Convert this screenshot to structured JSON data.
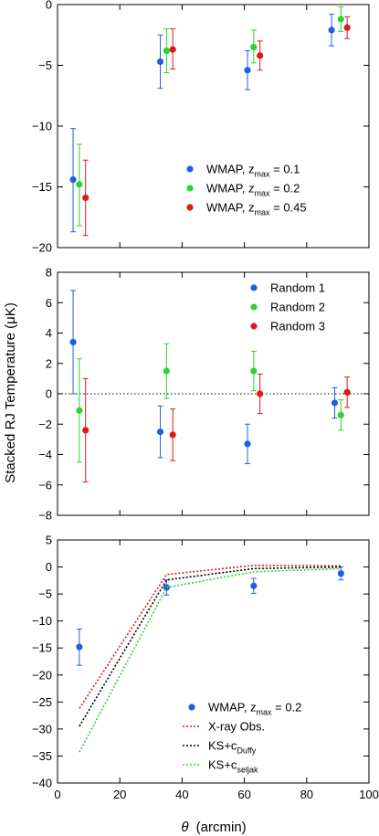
{
  "shared": {
    "ylabel": "Stacked RJ Temperature (μK)",
    "xlabel_symbol": "θ",
    "xlabel_unit": "(arcmin)",
    "xlim": [
      0,
      100
    ],
    "xticks": [
      0,
      20,
      40,
      60,
      80,
      100
    ]
  },
  "colors": {
    "blue": "#1f5fe0",
    "green": "#2fd22f",
    "red": "#e01818",
    "black": "#000000"
  },
  "chart_data": [
    {
      "type": "scatter",
      "ylim": [
        -20,
        0
      ],
      "yticks": [
        -20,
        -15,
        -10,
        -5,
        0
      ],
      "legend_placement": "bottom-right",
      "series": [
        {
          "name": "WMAP, z",
          "sub": "max",
          "suffix": " = 0.1",
          "color": "#1f5fe0",
          "points": [
            {
              "x": 5,
              "y": -14.4,
              "lo": -18.7,
              "hi": -10.2
            },
            {
              "x": 33,
              "y": -4.7,
              "lo": -6.9,
              "hi": -2.5
            },
            {
              "x": 61,
              "y": -5.4,
              "lo": -7.0,
              "hi": -3.8
            },
            {
              "x": 88,
              "y": -2.1,
              "lo": -3.4,
              "hi": -0.8
            }
          ]
        },
        {
          "name": "WMAP, z",
          "sub": "max",
          "suffix": " = 0.2",
          "color": "#2fd22f",
          "points": [
            {
              "x": 7,
              "y": -14.8,
              "lo": -18.2,
              "hi": -11.5
            },
            {
              "x": 35,
              "y": -3.8,
              "lo": -5.6,
              "hi": -2.0
            },
            {
              "x": 63,
              "y": -3.5,
              "lo": -4.8,
              "hi": -2.1
            },
            {
              "x": 91,
              "y": -1.2,
              "lo": -2.2,
              "hi": -0.2
            }
          ]
        },
        {
          "name": "WMAP, z",
          "sub": "max",
          "suffix": " = 0.45",
          "color": "#e01818",
          "points": [
            {
              "x": 9,
              "y": -15.9,
              "lo": -19.0,
              "hi": -12.8
            },
            {
              "x": 37,
              "y": -3.7,
              "lo": -5.3,
              "hi": -2.0
            },
            {
              "x": 65,
              "y": -4.2,
              "lo": -5.4,
              "hi": -3.0
            },
            {
              "x": 93,
              "y": -1.9,
              "lo": -2.8,
              "hi": -1.0
            }
          ]
        }
      ]
    },
    {
      "type": "scatter",
      "ylim": [
        -8,
        8
      ],
      "yticks": [
        -8,
        -6,
        -4,
        -2,
        0,
        2,
        4,
        6,
        8
      ],
      "zero_line": true,
      "legend_placement": "top-right",
      "series": [
        {
          "name": "Random 1",
          "color": "#1f5fe0",
          "points": [
            {
              "x": 5,
              "y": 3.4,
              "lo": 0.0,
              "hi": 6.8
            },
            {
              "x": 33,
              "y": -2.5,
              "lo": -4.2,
              "hi": -0.8
            },
            {
              "x": 61,
              "y": -3.3,
              "lo": -4.6,
              "hi": -2.0
            },
            {
              "x": 89,
              "y": -0.6,
              "lo": -1.6,
              "hi": 0.4
            }
          ]
        },
        {
          "name": "Random 2",
          "color": "#2fd22f",
          "points": [
            {
              "x": 7,
              "y": -1.1,
              "lo": -4.5,
              "hi": 2.3
            },
            {
              "x": 35,
              "y": 1.5,
              "lo": -0.3,
              "hi": 3.3
            },
            {
              "x": 63,
              "y": 1.5,
              "lo": 0.2,
              "hi": 2.8
            },
            {
              "x": 91,
              "y": -1.4,
              "lo": -2.4,
              "hi": -0.4
            }
          ]
        },
        {
          "name": "Random 3",
          "color": "#e01818",
          "points": [
            {
              "x": 9,
              "y": -2.4,
              "lo": -5.8,
              "hi": 1.0
            },
            {
              "x": 37,
              "y": -2.7,
              "lo": -4.4,
              "hi": -1.0
            },
            {
              "x": 65,
              "y": 0.0,
              "lo": -1.3,
              "hi": 1.3
            },
            {
              "x": 93,
              "y": 0.1,
              "lo": -0.9,
              "hi": 1.1
            }
          ]
        }
      ]
    },
    {
      "type": "line",
      "ylim": [
        -40,
        5
      ],
      "yticks": [
        -40,
        -35,
        -30,
        -25,
        -20,
        -15,
        -10,
        -5,
        0,
        5
      ],
      "legend_placement": "bottom-right",
      "series": [
        {
          "name": "WMAP, z",
          "sub": "max",
          "suffix": " = 0.2",
          "color": "#1f5fe0",
          "kind": "points",
          "points": [
            {
              "x": 7,
              "y": -14.8,
              "lo": -18.2,
              "hi": -11.5
            },
            {
              "x": 35,
              "y": -3.8,
              "lo": -5.2,
              "hi": -2.4
            },
            {
              "x": 63,
              "y": -3.5,
              "lo": -4.9,
              "hi": -2.1
            },
            {
              "x": 91,
              "y": -1.2,
              "lo": -2.4,
              "hi": 0.0
            }
          ]
        },
        {
          "name": "X-ray Obs.",
          "color": "#e01818",
          "kind": "line",
          "points": [
            {
              "x": 7,
              "y": -26.2
            },
            {
              "x": 35,
              "y": -1.4
            },
            {
              "x": 63,
              "y": 0.3
            },
            {
              "x": 91,
              "y": 0.2
            }
          ]
        },
        {
          "name": "KS+c",
          "sub": "Duffy",
          "color": "#000000",
          "kind": "line",
          "points": [
            {
              "x": 7,
              "y": -29.5
            },
            {
              "x": 35,
              "y": -2.4
            },
            {
              "x": 63,
              "y": -0.3
            },
            {
              "x": 91,
              "y": 0.0
            }
          ]
        },
        {
          "name": "KS+c",
          "sub": "seljak",
          "color": "#2fd22f",
          "kind": "line",
          "points": [
            {
              "x": 7,
              "y": -34.3
            },
            {
              "x": 35,
              "y": -3.8
            },
            {
              "x": 63,
              "y": -0.9
            },
            {
              "x": 91,
              "y": -0.3
            }
          ]
        }
      ]
    }
  ]
}
